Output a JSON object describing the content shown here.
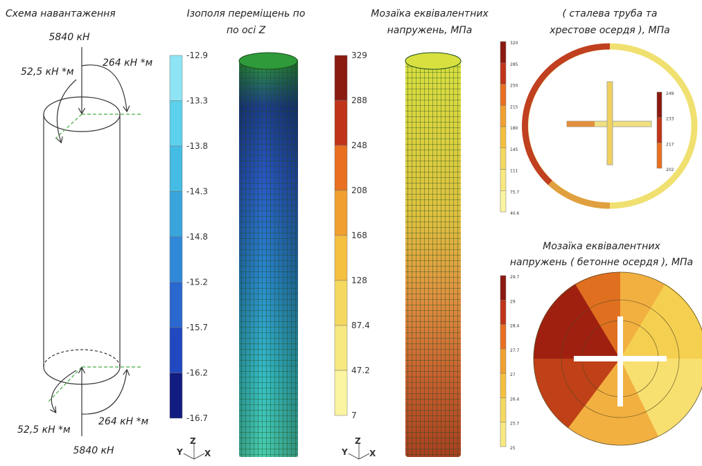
{
  "load_scheme": {
    "title": "Схема навантаження",
    "top_force": "5840 кН",
    "top_moment_left": "52,5 кН *м",
    "top_moment_right": "264 кН *м",
    "bottom_moment_left": "52,5 кН *м",
    "bottom_moment_right": "264 кН *м",
    "bottom_force": "5840 кН"
  },
  "displacement": {
    "title": [
      "Ізополя переміщень по",
      "по осі Z"
    ],
    "scale": [
      -12.9,
      -13.3,
      -13.8,
      -14.3,
      -14.8,
      -15.2,
      -15.7,
      -16.2,
      -16.7
    ]
  },
  "stress_tube": {
    "title": [
      "Мозаїка еквівалентних",
      "напружень, МПа"
    ],
    "scale": [
      329,
      288,
      248,
      208,
      168,
      128,
      87.4,
      47.2,
      7
    ]
  },
  "cross_section": {
    "title": [
      "( сталева труба та",
      "хрестове осердя ), МПа"
    ],
    "scale": [
      320,
      285,
      250,
      215,
      180,
      145,
      111,
      75.7,
      40.6
    ],
    "core_scale": [
      249,
      233,
      217,
      202
    ]
  },
  "concrete_core": {
    "title": [
      "Мозаїка еквівалентних",
      "напружень ( бетонне осердя ), МПа"
    ],
    "scale": [
      29.7,
      29,
      28.4,
      27.7,
      27,
      26.4,
      25.7,
      25
    ]
  },
  "axes": {
    "y": "Y",
    "z": "Z",
    "x": "X"
  }
}
